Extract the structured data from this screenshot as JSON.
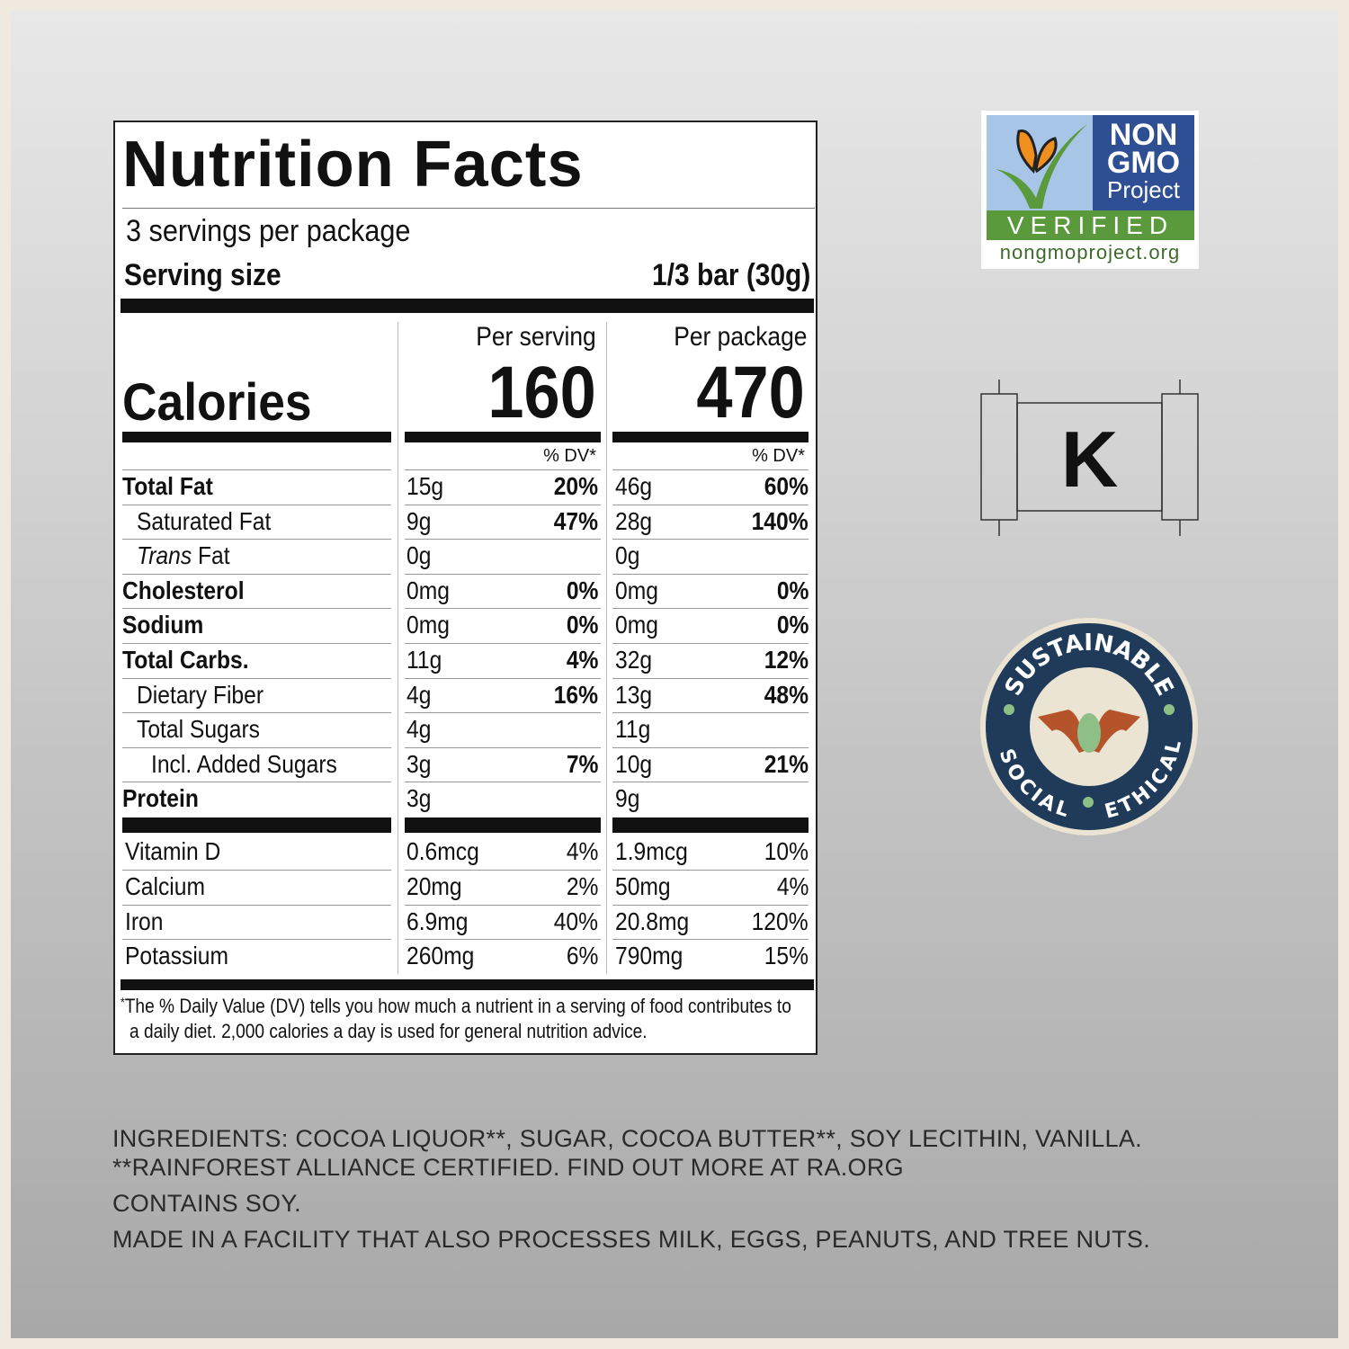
{
  "label": {
    "title": "Nutrition Facts",
    "servings": "3 servings per package",
    "serving_size_label": "Serving size",
    "serving_size_value": "1/3 bar (30g)",
    "calories_label": "Calories",
    "per_serving_label": "Per serving",
    "per_package_label": "Per package",
    "calories_serving": "160",
    "calories_package": "470",
    "dv_header": "% DV*",
    "nutrients": [
      {
        "name": "Total Fat",
        "bold": true,
        "indent": 0,
        "s_amt": "15g",
        "s_dv": "20%",
        "p_amt": "46g",
        "p_dv": "60%"
      },
      {
        "name": "Saturated Fat",
        "bold": false,
        "indent": 1,
        "s_amt": "9g",
        "s_dv": "47%",
        "p_amt": "28g",
        "p_dv": "140%"
      },
      {
        "name": "Trans Fat",
        "italic_prefix": "Trans",
        "suffix": " Fat",
        "bold": false,
        "indent": 1,
        "s_amt": "0g",
        "s_dv": "",
        "p_amt": "0g",
        "p_dv": ""
      },
      {
        "name": "Cholesterol",
        "bold": true,
        "indent": 0,
        "s_amt": "0mg",
        "s_dv": "0%",
        "p_amt": "0mg",
        "p_dv": "0%"
      },
      {
        "name": "Sodium",
        "bold": true,
        "indent": 0,
        "s_amt": "0mg",
        "s_dv": "0%",
        "p_amt": "0mg",
        "p_dv": "0%"
      },
      {
        "name": "Total Carbs.",
        "bold": true,
        "indent": 0,
        "s_amt": "11g",
        "s_dv": "4%",
        "p_amt": "32g",
        "p_dv": "12%"
      },
      {
        "name": "Dietary Fiber",
        "bold": false,
        "indent": 1,
        "s_amt": "4g",
        "s_dv": "16%",
        "p_amt": "13g",
        "p_dv": "48%"
      },
      {
        "name": "Total Sugars",
        "bold": false,
        "indent": 1,
        "s_amt": "4g",
        "s_dv": "",
        "p_amt": "11g",
        "p_dv": ""
      },
      {
        "name": "Incl. Added Sugars",
        "bold": false,
        "indent": 2,
        "s_amt": "3g",
        "s_dv": "7%",
        "p_amt": "10g",
        "p_dv": "21%"
      },
      {
        "name": "Protein",
        "bold": true,
        "indent": 0,
        "s_amt": "3g",
        "s_dv": "",
        "p_amt": "9g",
        "p_dv": ""
      }
    ],
    "vitamins": [
      {
        "name": "Vitamin D",
        "s_amt": "0.6mcg",
        "s_dv": "4%",
        "p_amt": "1.9mcg",
        "p_dv": "10%"
      },
      {
        "name": "Calcium",
        "s_amt": "20mg",
        "s_dv": "2%",
        "p_amt": "50mg",
        "p_dv": "4%"
      },
      {
        "name": "Iron",
        "s_amt": "6.9mg",
        "s_dv": "40%",
        "p_amt": "20.8mg",
        "p_dv": "120%"
      },
      {
        "name": "Potassium",
        "s_amt": "260mg",
        "s_dv": "6%",
        "p_amt": "790mg",
        "p_dv": "15%"
      }
    ],
    "footnote_1": "The % Daily Value (DV) tells you how much a nutrient in a serving of food contributes to",
    "footnote_2": "a daily diet. 2,000 calories a day is used for general nutrition advice."
  },
  "badges": {
    "nongmo": {
      "line1": "NON",
      "line2": "GMO",
      "line3": "Project",
      "verified": "VERIFIED",
      "url": "nongmoproject.org"
    },
    "kosher": "K",
    "seal": {
      "top": "SUSTAINABLE",
      "left": "SOCIAL",
      "right": "ETHICAL"
    }
  },
  "ingredients": {
    "line1": "INGREDIENTS: COCOA LIQUOR**, SUGAR, COCOA BUTTER**, SOY LECITHIN, VANILLA.",
    "line2": "**RAINFOREST ALLIANCE CERTIFIED. FIND OUT MORE AT RA.ORG",
    "line3": "CONTAINS SOY.",
    "line4": "MADE IN A FACILITY THAT ALSO PROCESSES MILK, EGGS, PEANUTS, AND TREE NUTS."
  }
}
